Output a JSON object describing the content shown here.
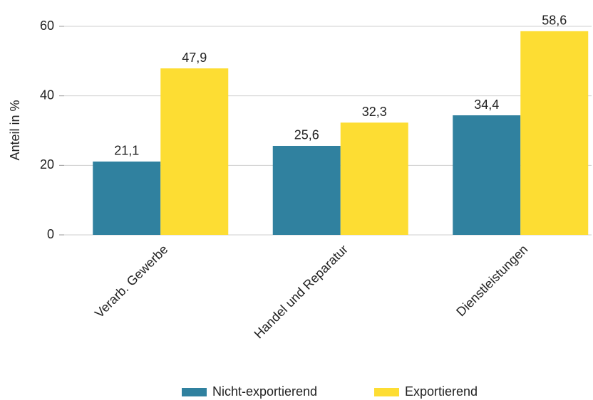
{
  "chart_data": {
    "type": "bar",
    "y_label": "Anteil in %",
    "categories": [
      "Verarb. Gewerbe",
      "Handel und Reparatur",
      "Dienstleistungen"
    ],
    "series": [
      {
        "name": "Nicht-exportierend",
        "color": "#30819f",
        "values": [
          21.1,
          25.6,
          34.4
        ],
        "value_labels": [
          "21,1",
          "25,6",
          "34,4"
        ]
      },
      {
        "name": "Exportierend",
        "color": "#fddd33",
        "values": [
          47.9,
          32.3,
          58.6
        ],
        "value_labels": [
          "47,9",
          "32,3",
          "58,6"
        ]
      }
    ],
    "ylim": [
      0,
      60
    ],
    "yticks": [
      0,
      20,
      40,
      60
    ],
    "grid": true
  }
}
